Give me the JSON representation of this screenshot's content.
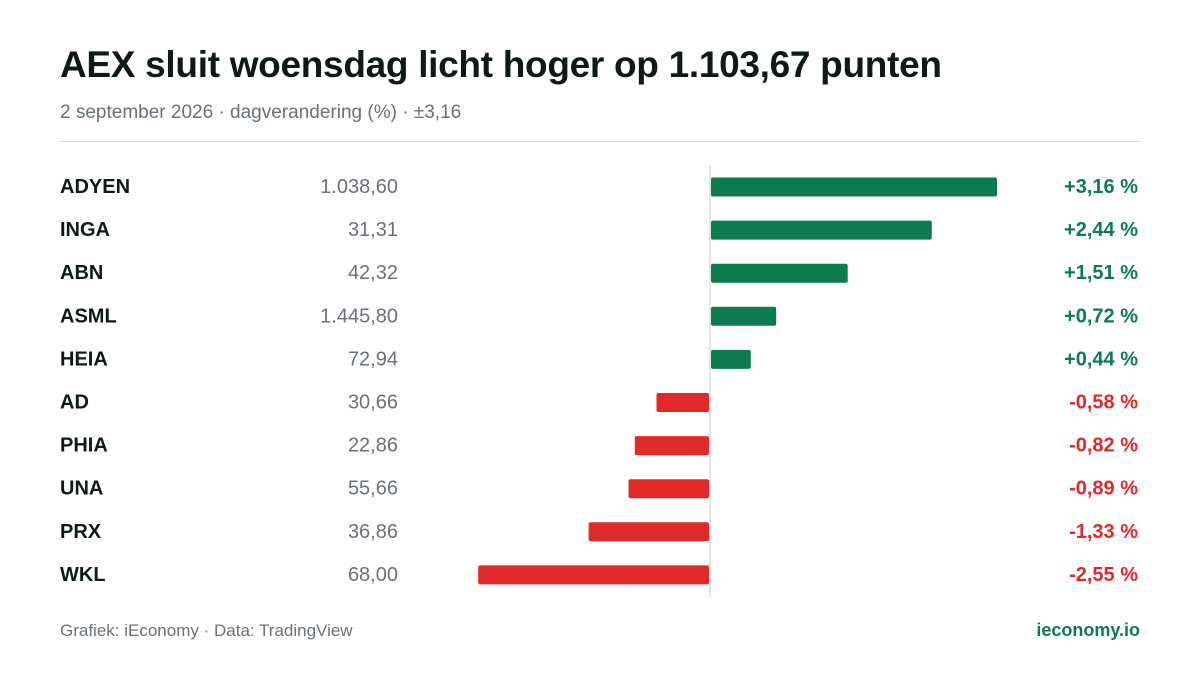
{
  "header": {
    "title": "AEX sluit woensdag licht hoger op 1.103,67 punten",
    "subtitle": "2 september 2026 · dagverandering (%) · ±3,16"
  },
  "footer": {
    "credit": "Grafiek: iEconomy · Data: TradingView",
    "brand": "ieconomy.io"
  },
  "colors": {
    "positive": "#0d7a50",
    "negative": "#e02a2a",
    "axis": "#d9dcde"
  },
  "chart_data": {
    "type": "bar",
    "orientation": "horizontal",
    "title": "AEX sluit woensdag licht hoger op 1.103,67 punten",
    "subtitle": "2 september 2026 · dagverandering (%) · ±3,16",
    "xlim": [
      -3.16,
      3.16
    ],
    "grid": false,
    "rows": [
      {
        "ticker": "ADYEN",
        "price": "1.038,60",
        "value": 3.16,
        "label": "+3,16 %"
      },
      {
        "ticker": "INGA",
        "price": "31,31",
        "value": 2.44,
        "label": "+2,44 %"
      },
      {
        "ticker": "ABN",
        "price": "42,32",
        "value": 1.51,
        "label": "+1,51 %"
      },
      {
        "ticker": "ASML",
        "price": "1.445,80",
        "value": 0.72,
        "label": "+0,72 %"
      },
      {
        "ticker": "HEIA",
        "price": "72,94",
        "value": 0.44,
        "label": "+0,44 %"
      },
      {
        "ticker": "AD",
        "price": "30,66",
        "value": -0.58,
        "label": "-0,58 %"
      },
      {
        "ticker": "PHIA",
        "price": "22,86",
        "value": -0.82,
        "label": "-0,82 %"
      },
      {
        "ticker": "UNA",
        "price": "55,66",
        "value": -0.89,
        "label": "-0,89 %"
      },
      {
        "ticker": "PRX",
        "price": "36,86",
        "value": -1.33,
        "label": "-1,33 %"
      },
      {
        "ticker": "WKL",
        "price": "68,00",
        "value": -2.55,
        "label": "-2,55 %"
      }
    ]
  }
}
